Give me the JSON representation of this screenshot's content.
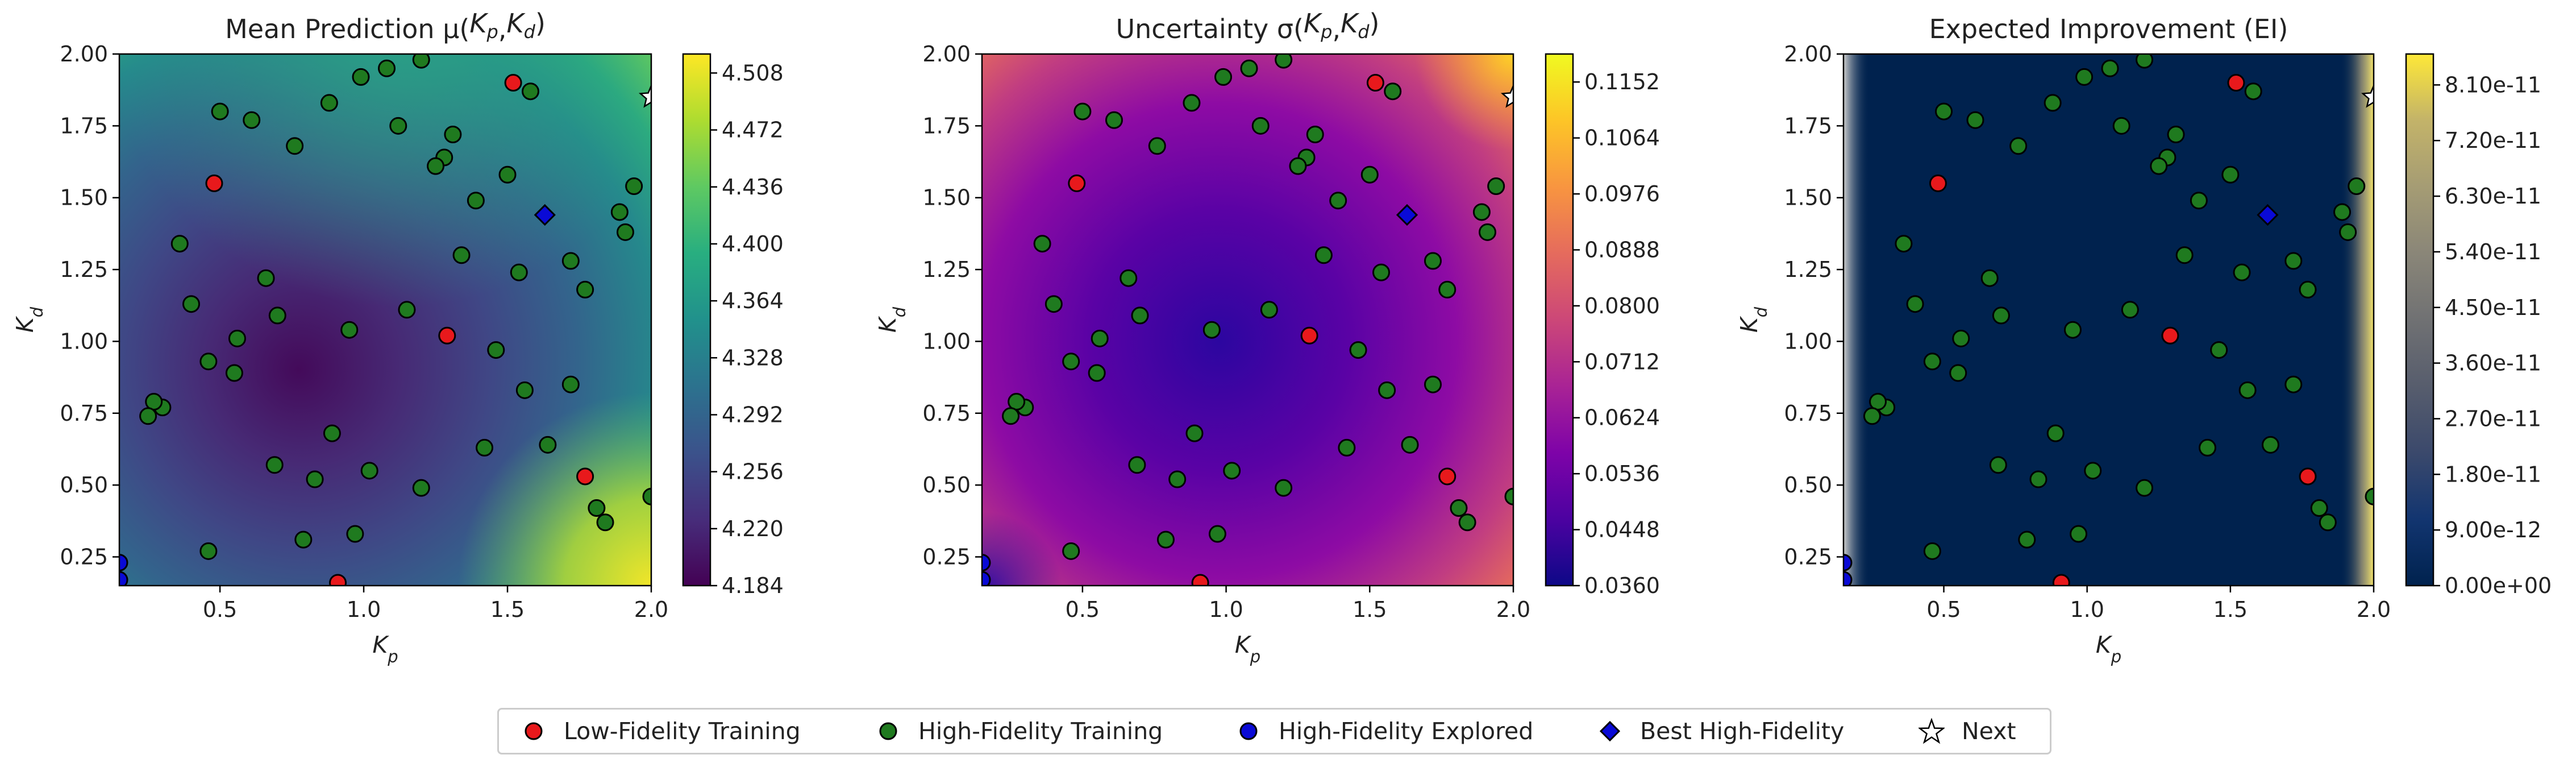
{
  "colors": {
    "low_fidelity": "#e8191c",
    "high_fidelity": "#1f7a1f",
    "hf_explored": "#0a0ad6",
    "best_hf": "#0a0ad6",
    "next": "#ffffff"
  },
  "points": {
    "low_fidelity": [
      [
        0.48,
        1.55
      ],
      [
        1.29,
        1.02
      ],
      [
        1.52,
        1.9
      ],
      [
        1.77,
        0.53
      ],
      [
        0.91,
        0.16
      ]
    ],
    "high_fidelity": [
      [
        0.5,
        1.8
      ],
      [
        0.61,
        1.77
      ],
      [
        0.76,
        1.68
      ],
      [
        0.88,
        1.83
      ],
      [
        0.99,
        1.92
      ],
      [
        1.08,
        1.95
      ],
      [
        1.2,
        1.98
      ],
      [
        1.12,
        1.75
      ],
      [
        1.31,
        1.72
      ],
      [
        1.28,
        1.64
      ],
      [
        1.25,
        1.61
      ],
      [
        1.5,
        1.58
      ],
      [
        1.39,
        1.49
      ],
      [
        1.58,
        1.87
      ],
      [
        0.36,
        1.34
      ],
      [
        1.34,
        1.3
      ],
      [
        1.54,
        1.24
      ],
      [
        1.72,
        1.28
      ],
      [
        1.77,
        1.18
      ],
      [
        1.15,
        1.11
      ],
      [
        0.4,
        1.13
      ],
      [
        0.66,
        1.22
      ],
      [
        0.7,
        1.09
      ],
      [
        0.56,
        1.01
      ],
      [
        0.46,
        0.93
      ],
      [
        0.95,
        1.04
      ],
      [
        1.46,
        0.97
      ],
      [
        1.56,
        0.83
      ],
      [
        1.72,
        0.85
      ],
      [
        0.55,
        0.89
      ],
      [
        0.3,
        0.77
      ],
      [
        0.27,
        0.79
      ],
      [
        0.25,
        0.74
      ],
      [
        0.89,
        0.68
      ],
      [
        1.42,
        0.63
      ],
      [
        1.64,
        0.64
      ],
      [
        0.69,
        0.57
      ],
      [
        0.83,
        0.52
      ],
      [
        1.02,
        0.55
      ],
      [
        1.2,
        0.49
      ],
      [
        0.79,
        0.31
      ],
      [
        0.97,
        0.33
      ],
      [
        0.46,
        0.27
      ],
      [
        1.81,
        0.42
      ],
      [
        1.84,
        0.37
      ],
      [
        1.89,
        1.45
      ],
      [
        1.91,
        1.38
      ],
      [
        1.94,
        1.54
      ],
      [
        2.0,
        0.46
      ]
    ],
    "hf_explored": [
      [
        0.15,
        0.23
      ],
      [
        0.15,
        0.17
      ]
    ],
    "best_hf": [
      [
        1.63,
        1.44
      ]
    ],
    "next": [
      [
        2.0,
        1.85
      ]
    ]
  },
  "chart_data": [
    {
      "type": "heatmap",
      "title": "Mean Prediction μ(Kp, Kd)",
      "title_base": "Mean Prediction μ(",
      "title_mid": ",",
      "title_end": ")",
      "colormap": "viridis",
      "xlabel": "Kp",
      "ylabel": "Kd",
      "xlim": [
        0.15,
        2.0
      ],
      "ylim": [
        0.15,
        2.0
      ],
      "x_ticks": [
        "0.5",
        "1.0",
        "1.5",
        "2.0"
      ],
      "y_ticks": [
        "0.25",
        "0.50",
        "0.75",
        "1.00",
        "1.25",
        "1.50",
        "1.75",
        "2.00"
      ],
      "colorbar_range": [
        4.184,
        4.52
      ],
      "colorbar_ticks": [
        "4.184",
        "4.220",
        "4.256",
        "4.292",
        "4.328",
        "4.364",
        "4.400",
        "4.436",
        "4.472",
        "4.508"
      ]
    },
    {
      "type": "heatmap",
      "title": "Uncertainty σ(Kp, Kd)",
      "title_base": "Uncertainty σ(",
      "title_mid": ",",
      "title_end": ")",
      "colormap": "plasma",
      "xlabel": "Kp",
      "ylabel": "Kd",
      "xlim": [
        0.15,
        2.0
      ],
      "ylim": [
        0.15,
        2.0
      ],
      "x_ticks": [
        "0.5",
        "1.0",
        "1.5",
        "2.0"
      ],
      "y_ticks": [
        "0.25",
        "0.50",
        "0.75",
        "1.00",
        "1.25",
        "1.50",
        "1.75",
        "2.00"
      ],
      "colorbar_range": [
        0.036,
        0.1196
      ],
      "colorbar_ticks": [
        "0.0360",
        "0.0448",
        "0.0536",
        "0.0624",
        "0.0712",
        "0.0800",
        "0.0888",
        "0.0976",
        "0.1064",
        "0.1152"
      ]
    },
    {
      "type": "heatmap",
      "title": "Expected Improvement (EI)",
      "colormap": "cividis",
      "xlabel": "Kp",
      "ylabel": "Kd",
      "xlim": [
        0.15,
        2.0
      ],
      "ylim": [
        0.15,
        2.0
      ],
      "x_ticks": [
        "0.5",
        "1.0",
        "1.5",
        "2.0"
      ],
      "y_ticks": [
        "0.25",
        "0.50",
        "0.75",
        "1.00",
        "1.25",
        "1.50",
        "1.75",
        "2.00"
      ],
      "colorbar_range": [
        0,
        8.6e-11
      ],
      "colorbar_ticks": [
        "0.00e+00",
        "9.00e-12",
        "1.80e-11",
        "2.70e-11",
        "3.60e-11",
        "4.50e-11",
        "5.40e-11",
        "6.30e-11",
        "7.20e-11",
        "8.10e-11"
      ]
    }
  ],
  "legend": [
    {
      "key": "low_fidelity",
      "marker": "circle",
      "label": "Low-Fidelity Training"
    },
    {
      "key": "high_fidelity",
      "marker": "circle",
      "label": "High-Fidelity Training"
    },
    {
      "key": "hf_explored",
      "marker": "circle",
      "label": "High-Fidelity Explored"
    },
    {
      "key": "best_hf",
      "marker": "diamond",
      "label": "Best High-Fidelity"
    },
    {
      "key": "next",
      "marker": "star",
      "label": "Next"
    }
  ]
}
